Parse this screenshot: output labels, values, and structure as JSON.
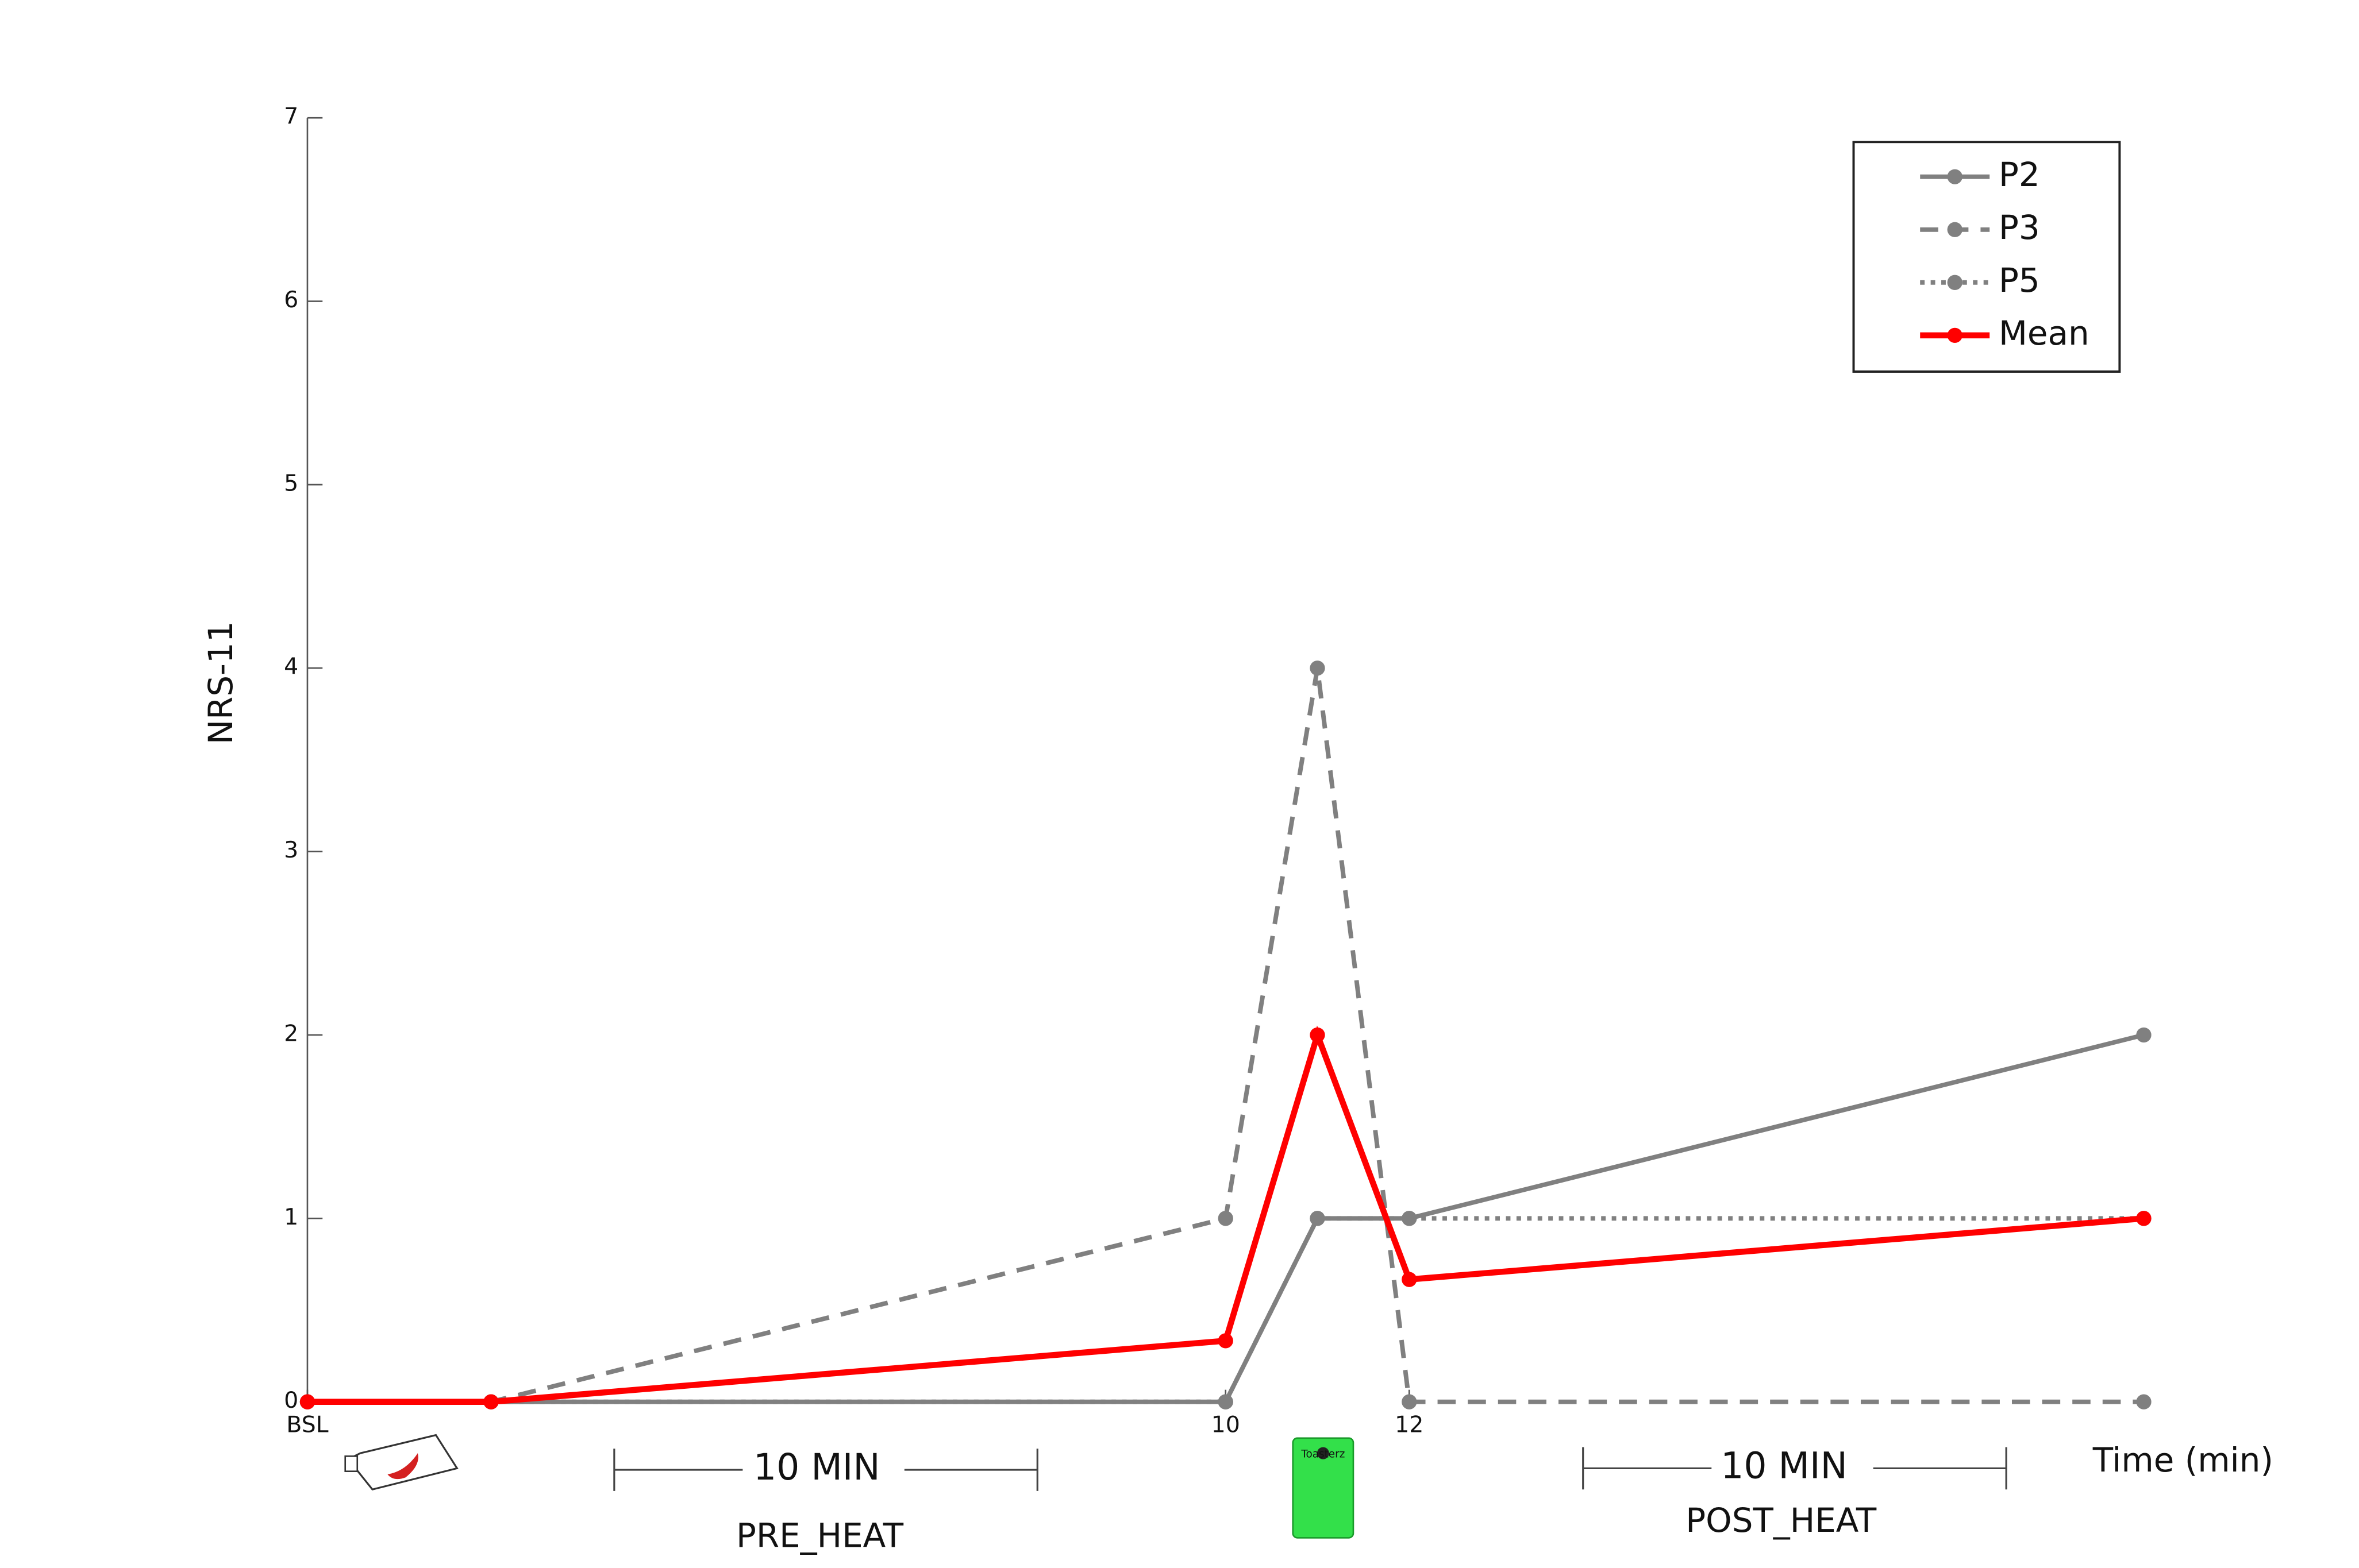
{
  "chart_data": {
    "type": "line",
    "y_label": "NRS-11",
    "x_label": "Time (min)",
    "x": [
      0,
      2,
      10,
      11,
      12,
      20
    ],
    "xlim": [
      0,
      20
    ],
    "xticks": [
      {
        "value": 0,
        "label": "BSL"
      },
      10,
      12
    ],
    "ylim": [
      0,
      7
    ],
    "yticks": [
      0,
      1,
      2,
      3,
      4,
      5,
      6,
      7
    ],
    "series": [
      {
        "name": "P2",
        "color": "#808080",
        "dash": "solid",
        "values": [
          0,
          0,
          0,
          1,
          1,
          2
        ]
      },
      {
        "name": "P3",
        "color": "#808080",
        "dash": "dashed",
        "values": [
          0,
          0,
          1,
          4,
          0,
          0
        ]
      },
      {
        "name": "P5",
        "color": "#808080",
        "dash": "dotted",
        "values": [
          0,
          0,
          0,
          1,
          1,
          1
        ]
      },
      {
        "name": "Mean",
        "color": "#ff0000",
        "dash": "solid",
        "values": [
          0,
          0,
          0.333,
          2,
          0.667,
          1
        ]
      }
    ],
    "legend": "upper right",
    "annotations": [
      "10 MIN",
      "PRE_HEAT",
      "10 MIN",
      "POST_HEAT",
      "Toasterz"
    ]
  }
}
